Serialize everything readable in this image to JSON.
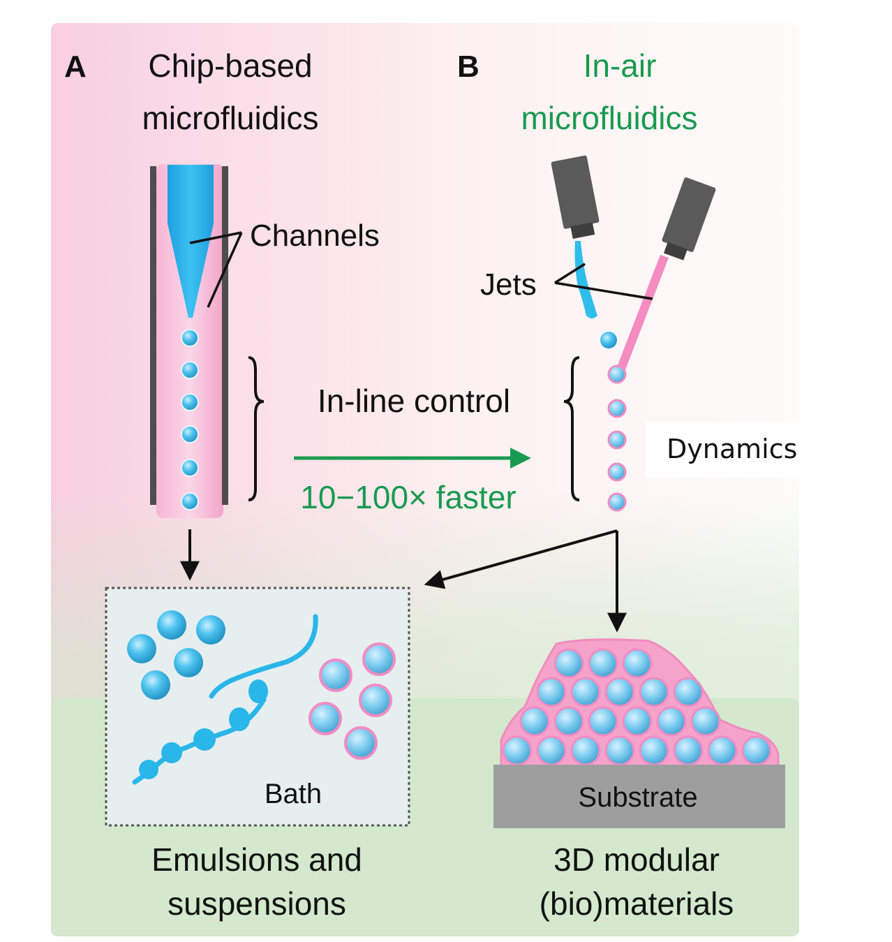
{
  "panel_a": {
    "letter": "A",
    "title_line1": "Chip-based",
    "title_line2": "microfluidics",
    "channels_label": "Channels"
  },
  "panel_b": {
    "letter": "B",
    "title_line1": "In-air",
    "title_line2": "microfluidics",
    "jets_label": "Jets",
    "dynamics_label": "Dynamics"
  },
  "comparison": {
    "inline_label": "In-line control",
    "speed_label": "10−100× faster"
  },
  "outputs": {
    "bath_label": "Bath",
    "emulsions_line1": "Emulsions and",
    "emulsions_line2": "suspensions",
    "substrate_label": "Substrate",
    "modular_line1": "3D modular",
    "modular_line2": "(bio)materials"
  },
  "colors": {
    "accent_green": "#1a9a50",
    "cyan_fluid": "#29b6e8",
    "pink_fluid": "#f3a6cf",
    "nozzle_gray": "#5e5e5e",
    "substrate_gray": "#9e9e9e",
    "bath_dash": "#555555"
  }
}
